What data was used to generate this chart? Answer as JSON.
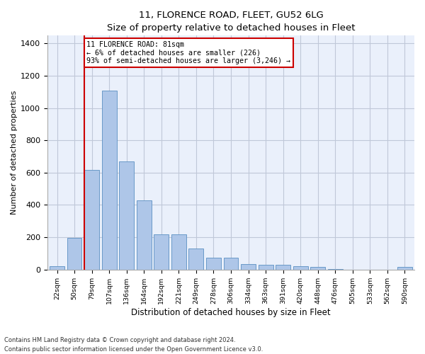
{
  "title": "11, FLORENCE ROAD, FLEET, GU52 6LG",
  "subtitle": "Size of property relative to detached houses in Fleet",
  "xlabel": "Distribution of detached houses by size in Fleet",
  "ylabel": "Number of detached properties",
  "categories": [
    "22sqm",
    "50sqm",
    "79sqm",
    "107sqm",
    "136sqm",
    "164sqm",
    "192sqm",
    "221sqm",
    "249sqm",
    "278sqm",
    "306sqm",
    "334sqm",
    "363sqm",
    "391sqm",
    "420sqm",
    "448sqm",
    "476sqm",
    "505sqm",
    "533sqm",
    "562sqm",
    "590sqm"
  ],
  "bar_heights": [
    20,
    195,
    615,
    1110,
    670,
    430,
    220,
    220,
    130,
    75,
    75,
    35,
    30,
    30,
    20,
    15,
    5,
    0,
    0,
    0,
    15
  ],
  "bar_color": "#aec6e8",
  "bar_edge_color": "#5a8fc2",
  "background_color": "#eaf0fb",
  "grid_color": "#c0c8d8",
  "vline_x": 1.575,
  "vline_color": "#cc0000",
  "annotation_text": "11 FLORENCE ROAD: 81sqm\n← 6% of detached houses are smaller (226)\n93% of semi-detached houses are larger (3,246) →",
  "annotation_box_color": "#cc0000",
  "footer_line1": "Contains HM Land Registry data © Crown copyright and database right 2024.",
  "footer_line2": "Contains public sector information licensed under the Open Government Licence v3.0.",
  "ylim": [
    0,
    1450
  ],
  "yticks": [
    0,
    200,
    400,
    600,
    800,
    1000,
    1200,
    1400
  ]
}
